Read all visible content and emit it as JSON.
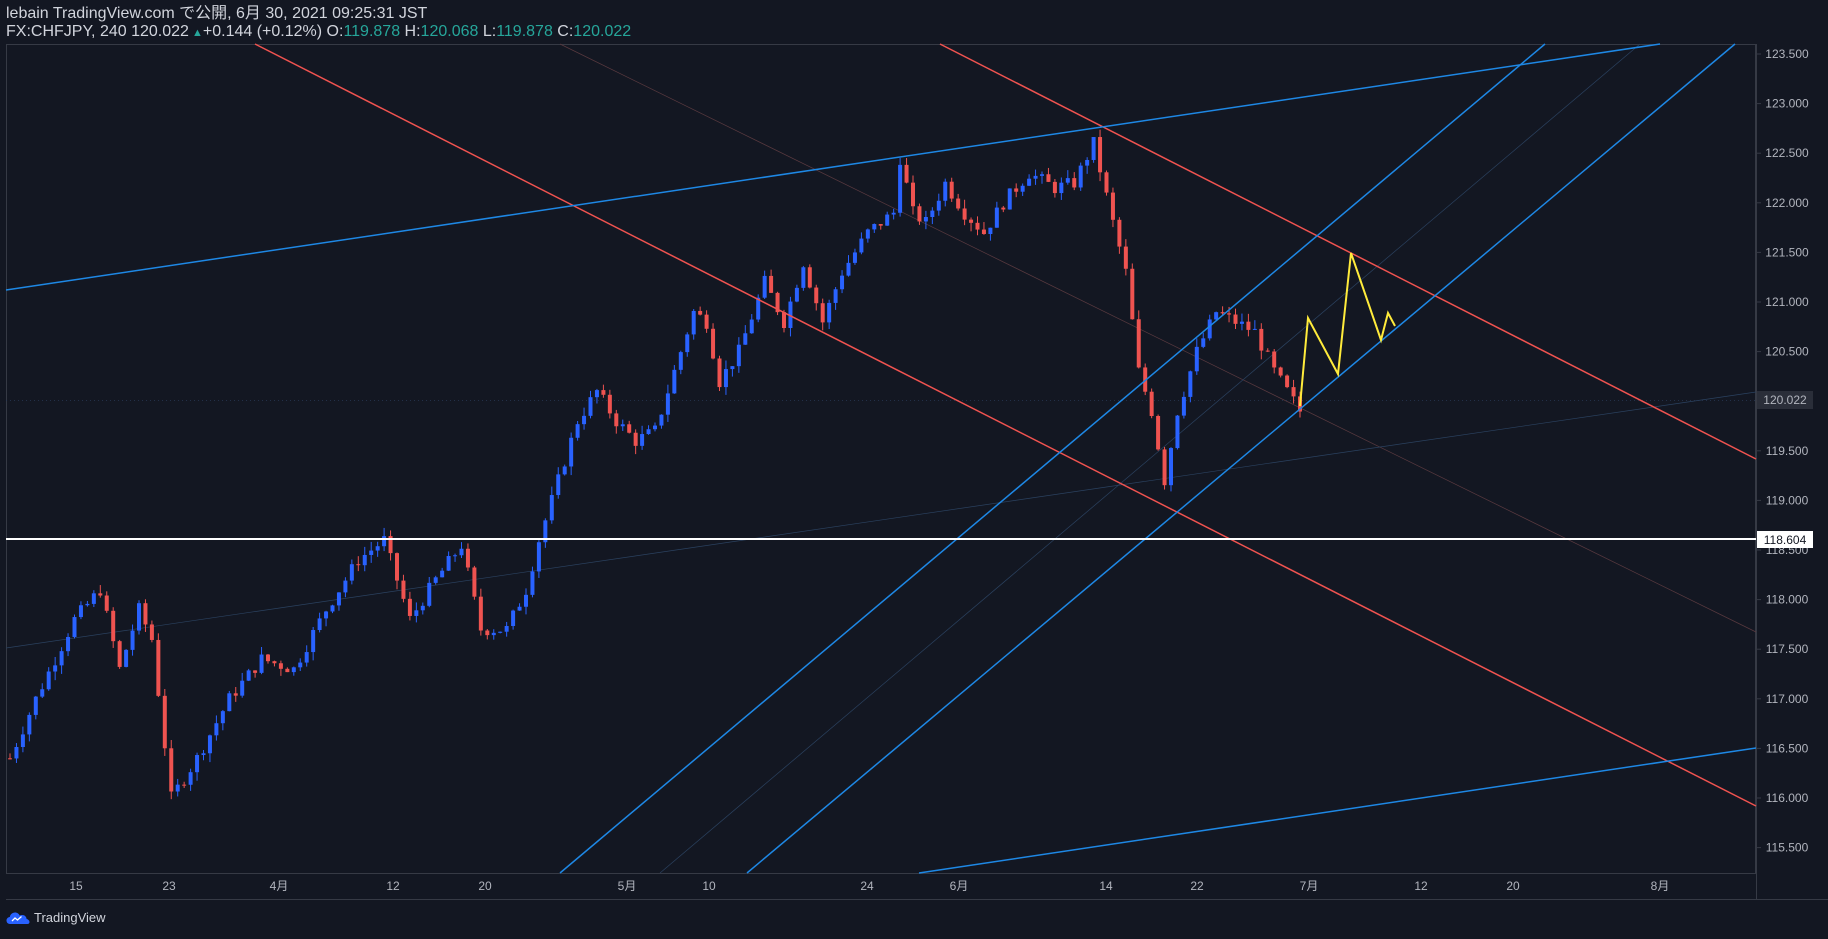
{
  "header": {
    "line1": "lebain TradingView.com で公開, 6月 30, 2021 09:25:31 JST",
    "symbol": "FX:CHFJPY, 240 ",
    "last": "120.022",
    "change": "+0.144 (+0.12%)",
    "o_label": "O:",
    "o_val": "119.878",
    "h_label": "H:",
    "h_val": "120.068",
    "l_label": "L:",
    "l_val": "119.878",
    "c_label": "C:",
    "c_val": "120.022"
  },
  "footer": {
    "brand": "TradingView"
  },
  "colors": {
    "background": "#131722",
    "up": "#2962ff",
    "down": "#ef5350",
    "red_line": "#f05350",
    "blue_line": "#1e88e5",
    "horizontal": "#ffffff",
    "projection": "#ffeb3b"
  },
  "chart_data": {
    "type": "candlestick",
    "symbol": "FX:CHFJPY",
    "interval": "240",
    "y_ticks": [
      "123.500",
      "123.000",
      "122.500",
      "122.000",
      "121.500",
      "121.000",
      "120.500",
      "120.000",
      "119.500",
      "119.000",
      "118.500",
      "118.000",
      "117.500",
      "117.000",
      "116.500",
      "116.000",
      "115.500"
    ],
    "x_ticks": [
      "15",
      "23",
      "4月",
      "12",
      "20",
      "5月",
      "10",
      "24",
      "6月",
      "14",
      "22",
      "7月",
      "12",
      "20",
      "8月"
    ],
    "ylim": [
      115.2,
      123.65
    ],
    "last_price_label": "120.022",
    "level_label": "118.604",
    "anchors": [
      {
        "x": 0,
        "y": 116.4
      },
      {
        "x": 4,
        "y": 117.0
      },
      {
        "x": 10,
        "y": 117.8
      },
      {
        "x": 14,
        "y": 118.1
      },
      {
        "x": 17,
        "y": 117.3
      },
      {
        "x": 20,
        "y": 117.9
      },
      {
        "x": 22,
        "y": 117.6
      },
      {
        "x": 25,
        "y": 116.0
      },
      {
        "x": 29,
        "y": 116.4
      },
      {
        "x": 34,
        "y": 117.0
      },
      {
        "x": 39,
        "y": 117.4
      },
      {
        "x": 44,
        "y": 117.3
      },
      {
        "x": 49,
        "y": 117.9
      },
      {
        "x": 54,
        "y": 118.4
      },
      {
        "x": 58,
        "y": 118.6
      },
      {
        "x": 62,
        "y": 117.8
      },
      {
        "x": 66,
        "y": 118.2
      },
      {
        "x": 70,
        "y": 118.55
      },
      {
        "x": 73,
        "y": 117.7
      },
      {
        "x": 77,
        "y": 117.7
      },
      {
        "x": 80,
        "y": 118.1
      },
      {
        "x": 82,
        "y": 118.6
      },
      {
        "x": 85,
        "y": 119.2
      },
      {
        "x": 88,
        "y": 119.8
      },
      {
        "x": 91,
        "y": 120.1
      },
      {
        "x": 94,
        "y": 119.8
      },
      {
        "x": 97,
        "y": 119.6
      },
      {
        "x": 100,
        "y": 119.7
      },
      {
        "x": 103,
        "y": 120.3
      },
      {
        "x": 106,
        "y": 120.9
      },
      {
        "x": 108,
        "y": 120.8
      },
      {
        "x": 110,
        "y": 120.2
      },
      {
        "x": 113,
        "y": 120.5
      },
      {
        "x": 117,
        "y": 121.2
      },
      {
        "x": 120,
        "y": 120.8
      },
      {
        "x": 123,
        "y": 121.4
      },
      {
        "x": 126,
        "y": 120.8
      },
      {
        "x": 129,
        "y": 121.3
      },
      {
        "x": 133,
        "y": 121.7
      },
      {
        "x": 137,
        "y": 121.9
      },
      {
        "x": 138,
        "y": 122.45
      },
      {
        "x": 140,
        "y": 121.9
      },
      {
        "x": 142,
        "y": 121.8
      },
      {
        "x": 145,
        "y": 122.2
      },
      {
        "x": 148,
        "y": 121.9
      },
      {
        "x": 151,
        "y": 121.7
      },
      {
        "x": 154,
        "y": 122.0
      },
      {
        "x": 158,
        "y": 122.3
      },
      {
        "x": 162,
        "y": 122.15
      },
      {
        "x": 165,
        "y": 122.2
      },
      {
        "x": 168,
        "y": 122.6
      },
      {
        "x": 171,
        "y": 121.8
      },
      {
        "x": 173,
        "y": 121.3
      },
      {
        "x": 175,
        "y": 120.3
      },
      {
        "x": 177,
        "y": 119.9
      },
      {
        "x": 179,
        "y": 119.2
      },
      {
        "x": 181,
        "y": 119.9
      },
      {
        "x": 184,
        "y": 120.5
      },
      {
        "x": 187,
        "y": 120.9
      },
      {
        "x": 190,
        "y": 120.8
      },
      {
        "x": 193,
        "y": 120.7
      },
      {
        "x": 196,
        "y": 120.3
      },
      {
        "x": 200,
        "y": 119.9
      }
    ]
  }
}
